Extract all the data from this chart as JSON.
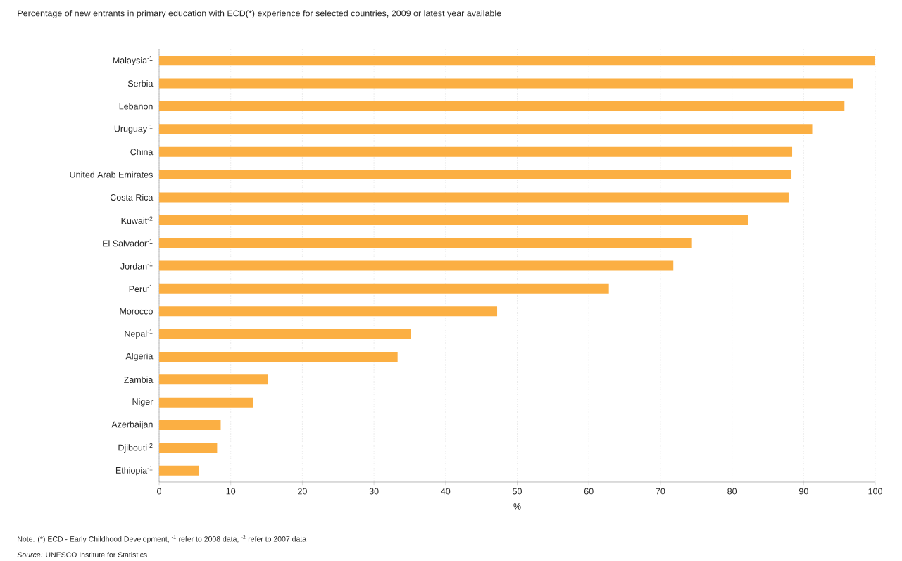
{
  "chart_data": {
    "type": "bar",
    "orientation": "horizontal",
    "title": "Percentage of new entrants in primary education with ECD(*) experience for selected countries, 2009 or latest year available",
    "categories": [
      "Malaysia$^{-1}$",
      "Serbia",
      "Lebanon",
      "Uruguay$^{-1}$",
      "China",
      "United Arab Emirates",
      "Costa Rica",
      "Kuwait$^{-2}$",
      "El Salvador$^{-1}$",
      "Jordan$^{-1}$",
      "Peru$^{-1}$",
      "Morocco",
      "Nepal$^{-1}$",
      "Algeria",
      "Zambia",
      "Niger",
      "Azerbaijan",
      "Djibouti$^{-2}$",
      "Ethiopia$^{-1}$"
    ],
    "values": [
      100,
      96.9,
      95.7,
      91.2,
      88.4,
      88.3,
      87.9,
      82.2,
      74.4,
      71.8,
      62.8,
      47.2,
      35.2,
      33.3,
      15.2,
      13.1,
      8.6,
      8.1,
      5.6
    ],
    "color": "#fbaf43",
    "xlim": [
      0,
      100
    ],
    "xticks": [
      0,
      10,
      20,
      30,
      40,
      50,
      60,
      70,
      80,
      90,
      100
    ],
    "xlabel": "%",
    "grid": "x",
    "annotations": [
      "Note: (*) ECD - Early Childhood Development; $^{-1}$ refer to 2008 data; $^{-2}$ refer to 2007 data",
      "*Source:* UNESCO Institute for Statistics"
    ]
  }
}
